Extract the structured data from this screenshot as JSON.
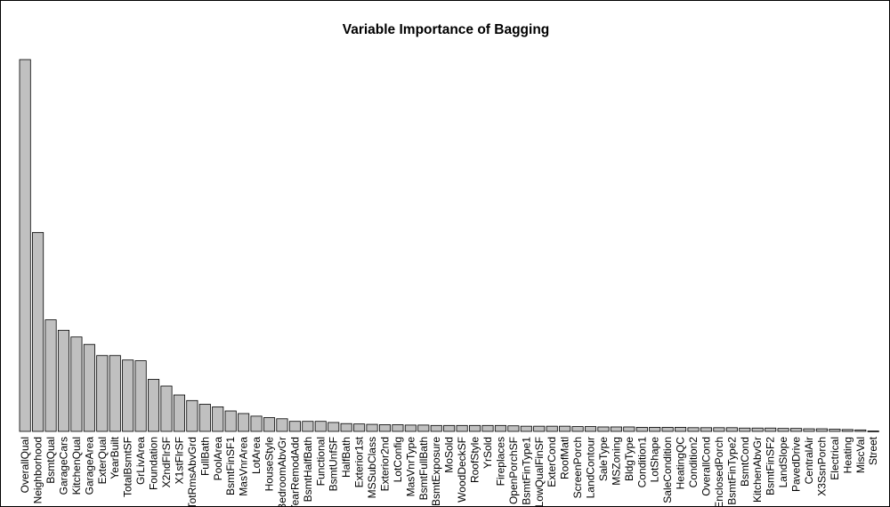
{
  "chart_data": {
    "type": "bar",
    "title": "Variable Importance of Bagging",
    "xlabel": "",
    "ylabel": "",
    "bar_fill": "#c0c0c0",
    "bar_stroke": "#000000",
    "axes_visible": false,
    "categories": [
      "OverallQual",
      "Neighborhood",
      "BsmtQual",
      "GarageCars",
      "KitchenQual",
      "GarageArea",
      "ExterQual",
      "YearBuilt",
      "TotalBsmtSF",
      "GrLivArea",
      "Foundation",
      "X2ndFlrSF",
      "X1stFlrSF",
      "TotRmsAbvGrd",
      "FullBath",
      "PoolArea",
      "BsmtFinSF1",
      "MasVnrArea",
      "LotArea",
      "HouseStyle",
      "BedroomAbvGr",
      "YearRemodAdd",
      "BsmtHalfBath",
      "Functional",
      "BsmtUnfSF",
      "HalfBath",
      "Exterior1st",
      "MSSubClass",
      "Exterior2nd",
      "LotConfig",
      "MasVnrType",
      "BsmtFullBath",
      "BsmtExposure",
      "MoSold",
      "WoodDeckSF",
      "RoofStyle",
      "YrSold",
      "Fireplaces",
      "OpenPorchSF",
      "BsmtFinType1",
      "LowQualFinSF",
      "ExterCond",
      "RoofMatl",
      "ScreenPorch",
      "LandContour",
      "SaleType",
      "MSZoning",
      "BldgType",
      "Condition1",
      "LotShape",
      "SaleCondition",
      "HeatingQC",
      "Condition2",
      "OverallCond",
      "EnclosedPorch",
      "BsmtFinType2",
      "BsmtCond",
      "KitchenAbvGr",
      "BsmtFinSF2",
      "LandSlope",
      "PavedDrive",
      "CentralAir",
      "X3SsnPorch",
      "Electrical",
      "Heating",
      "MiscVal",
      "Street"
    ],
    "values": [
      1.0,
      0.535,
      0.3,
      0.272,
      0.254,
      0.234,
      0.204,
      0.204,
      0.192,
      0.19,
      0.14,
      0.122,
      0.098,
      0.083,
      0.073,
      0.066,
      0.055,
      0.048,
      0.041,
      0.037,
      0.034,
      0.027,
      0.027,
      0.027,
      0.024,
      0.021,
      0.02,
      0.019,
      0.018,
      0.018,
      0.017,
      0.017,
      0.016,
      0.016,
      0.016,
      0.016,
      0.016,
      0.016,
      0.015,
      0.014,
      0.014,
      0.014,
      0.014,
      0.013,
      0.013,
      0.012,
      0.012,
      0.012,
      0.011,
      0.011,
      0.011,
      0.011,
      0.01,
      0.01,
      0.01,
      0.01,
      0.009,
      0.009,
      0.009,
      0.008,
      0.008,
      0.007,
      0.007,
      0.006,
      0.005,
      0.004,
      0.001
    ],
    "ylim": [
      0,
      1.0
    ]
  }
}
